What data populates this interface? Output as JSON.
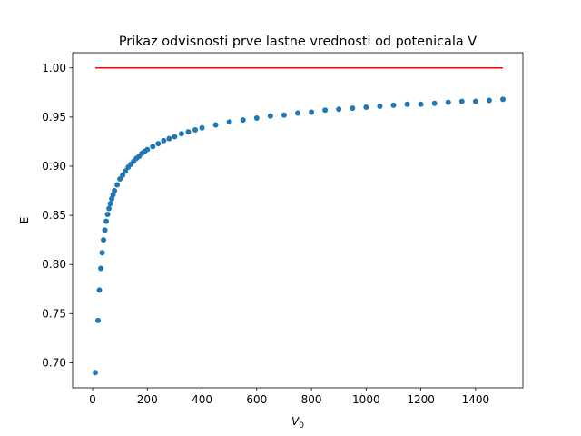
{
  "chart_data": {
    "type": "scatter",
    "title": "Prikaz odvisnosti prve lastne vrednosti od potenicala V",
    "xlabel_base": "V",
    "xlabel_sub": "0",
    "ylabel": "E",
    "xlim": [
      -73,
      1573
    ],
    "ylim": [
      0.6745,
      1.0155
    ],
    "xticks": [
      0,
      200,
      400,
      600,
      800,
      1000,
      1200,
      1400
    ],
    "yticks": [
      0.7,
      0.75,
      0.8,
      0.85,
      0.9,
      0.95,
      1.0
    ],
    "grid": false,
    "scatter_color": "#1f77b4",
    "line_color": "#ff0000",
    "series": [
      {
        "kind": "line",
        "x": [
          10,
          1500
        ],
        "y": [
          1.0,
          1.0
        ]
      },
      {
        "kind": "scatter",
        "x": [
          10,
          20,
          25,
          30,
          35,
          40,
          45,
          50,
          55,
          60,
          65,
          70,
          75,
          80,
          90,
          100,
          110,
          120,
          130,
          140,
          150,
          160,
          170,
          180,
          190,
          200,
          220,
          240,
          260,
          280,
          300,
          325,
          350,
          375,
          400,
          450,
          500,
          550,
          600,
          650,
          700,
          750,
          800,
          850,
          900,
          950,
          1000,
          1050,
          1100,
          1150,
          1200,
          1250,
          1300,
          1350,
          1400,
          1450,
          1500
        ],
        "y": [
          0.69,
          0.743,
          0.774,
          0.796,
          0.812,
          0.825,
          0.835,
          0.844,
          0.851,
          0.857,
          0.862,
          0.867,
          0.871,
          0.875,
          0.881,
          0.887,
          0.891,
          0.895,
          0.899,
          0.902,
          0.905,
          0.908,
          0.91,
          0.913,
          0.915,
          0.917,
          0.92,
          0.923,
          0.926,
          0.928,
          0.93,
          0.933,
          0.935,
          0.937,
          0.939,
          0.942,
          0.945,
          0.947,
          0.949,
          0.951,
          0.952,
          0.954,
          0.955,
          0.957,
          0.958,
          0.959,
          0.96,
          0.961,
          0.962,
          0.963,
          0.963,
          0.964,
          0.965,
          0.966,
          0.966,
          0.967,
          0.968
        ]
      }
    ]
  }
}
